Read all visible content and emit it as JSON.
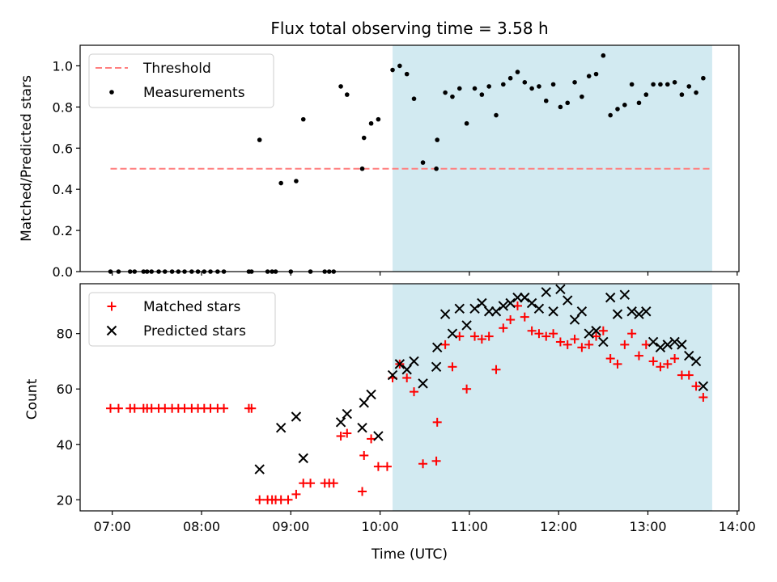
{
  "title": "Flux total observing time = 3.58 h",
  "x_axis": {
    "label": "Time (UTC)",
    "ticks": [
      {
        "value": 7.0,
        "label": "07:00"
      },
      {
        "value": 8.0,
        "label": "08:00"
      },
      {
        "value": 9.0,
        "label": "09:00"
      },
      {
        "value": 10.0,
        "label": "10:00"
      },
      {
        "value": 11.0,
        "label": "11:00"
      },
      {
        "value": 12.0,
        "label": "12:00"
      },
      {
        "value": 13.0,
        "label": "13:00"
      },
      {
        "value": 14.0,
        "label": "14:00"
      }
    ],
    "range_hours": [
      6.64,
      14.02
    ]
  },
  "colors": {
    "shade": "#add8e6",
    "threshold": "#ff7f7f",
    "measurements": "#000000",
    "matched": "#ff0000",
    "predicted": "#000000"
  },
  "chart_data": [
    {
      "type": "scatter",
      "title": "Flux total observing time = 3.58 h",
      "xlabel": "",
      "ylabel": "Matched/Predicted stars",
      "ylim": [
        0,
        1.1
      ],
      "yticks": [
        "0.0",
        "0.2",
        "0.4",
        "0.6",
        "0.8",
        "1.0"
      ],
      "legend": {
        "placement": "upper-left",
        "entries": [
          "Threshold",
          "Measurements"
        ]
      },
      "shaded_region_hours": [
        10.14,
        13.72
      ],
      "threshold": {
        "name": "Threshold",
        "value": 0.5,
        "x_range_hours": [
          6.98,
          13.72
        ]
      },
      "series": [
        {
          "name": "Measurements",
          "points": [
            [
              6.98,
              0
            ],
            [
              7.07,
              0
            ],
            [
              7.2,
              0
            ],
            [
              7.25,
              0
            ],
            [
              7.35,
              0
            ],
            [
              7.39,
              0
            ],
            [
              7.44,
              0
            ],
            [
              7.52,
              0
            ],
            [
              7.59,
              0
            ],
            [
              7.67,
              0
            ],
            [
              7.74,
              0
            ],
            [
              7.81,
              0
            ],
            [
              7.89,
              0
            ],
            [
              7.96,
              0
            ],
            [
              8.03,
              0
            ],
            [
              8.1,
              0
            ],
            [
              8.18,
              0
            ],
            [
              8.25,
              0
            ],
            [
              8.53,
              0
            ],
            [
              8.56,
              0
            ],
            [
              8.65,
              0.64
            ],
            [
              8.74,
              0
            ],
            [
              8.79,
              0
            ],
            [
              8.83,
              0
            ],
            [
              8.89,
              0.43
            ],
            [
              9.0,
              0
            ],
            [
              9.06,
              0.44
            ],
            [
              9.14,
              0.74
            ],
            [
              9.22,
              0
            ],
            [
              9.38,
              0
            ],
            [
              9.43,
              0
            ],
            [
              9.48,
              0
            ],
            [
              9.56,
              0.9
            ],
            [
              9.63,
              0.86
            ],
            [
              9.8,
              0.5
            ],
            [
              9.82,
              0.65
            ],
            [
              9.9,
              0.72
            ],
            [
              9.98,
              0.74
            ],
            [
              10.14,
              0.98
            ],
            [
              10.22,
              1.0
            ],
            [
              10.3,
              0.96
            ],
            [
              10.38,
              0.84
            ],
            [
              10.48,
              0.53
            ],
            [
              10.63,
              0.5
            ],
            [
              10.64,
              0.64
            ],
            [
              10.73,
              0.87
            ],
            [
              10.81,
              0.85
            ],
            [
              10.89,
              0.89
            ],
            [
              10.97,
              0.72
            ],
            [
              11.06,
              0.89
            ],
            [
              11.14,
              0.86
            ],
            [
              11.22,
              0.9
            ],
            [
              11.3,
              0.76
            ],
            [
              11.38,
              0.91
            ],
            [
              11.46,
              0.94
            ],
            [
              11.54,
              0.97
            ],
            [
              11.62,
              0.92
            ],
            [
              11.7,
              0.89
            ],
            [
              11.78,
              0.9
            ],
            [
              11.86,
              0.83
            ],
            [
              11.94,
              0.91
            ],
            [
              12.02,
              0.8
            ],
            [
              12.1,
              0.82
            ],
            [
              12.18,
              0.92
            ],
            [
              12.26,
              0.85
            ],
            [
              12.34,
              0.95
            ],
            [
              12.42,
              0.96
            ],
            [
              12.5,
              1.05
            ],
            [
              12.58,
              0.76
            ],
            [
              12.66,
              0.79
            ],
            [
              12.74,
              0.81
            ],
            [
              12.82,
              0.91
            ],
            [
              12.9,
              0.82
            ],
            [
              12.98,
              0.86
            ],
            [
              13.06,
              0.91
            ],
            [
              13.14,
              0.91
            ],
            [
              13.22,
              0.91
            ],
            [
              13.3,
              0.92
            ],
            [
              13.38,
              0.86
            ],
            [
              13.46,
              0.9
            ],
            [
              13.54,
              0.87
            ],
            [
              13.62,
              0.94
            ]
          ]
        }
      ]
    },
    {
      "type": "scatter",
      "title": "",
      "xlabel": "Time (UTC)",
      "ylabel": "Count",
      "ylim": [
        16,
        98
      ],
      "yticks": [
        "20",
        "40",
        "60",
        "80"
      ],
      "legend": {
        "placement": "upper-left",
        "entries": [
          "Matched stars",
          "Predicted stars"
        ]
      },
      "shaded_region_hours": [
        10.14,
        13.72
      ],
      "series": [
        {
          "name": "Matched stars",
          "marker": "plus",
          "points": [
            [
              6.98,
              53
            ],
            [
              7.07,
              53
            ],
            [
              7.2,
              53
            ],
            [
              7.25,
              53
            ],
            [
              7.35,
              53
            ],
            [
              7.39,
              53
            ],
            [
              7.44,
              53
            ],
            [
              7.52,
              53
            ],
            [
              7.59,
              53
            ],
            [
              7.67,
              53
            ],
            [
              7.74,
              53
            ],
            [
              7.81,
              53
            ],
            [
              7.89,
              53
            ],
            [
              7.96,
              53
            ],
            [
              8.03,
              53
            ],
            [
              8.1,
              53
            ],
            [
              8.18,
              53
            ],
            [
              8.25,
              53
            ],
            [
              8.53,
              53
            ],
            [
              8.56,
              53
            ],
            [
              8.65,
              20
            ],
            [
              8.74,
              20
            ],
            [
              8.79,
              20
            ],
            [
              8.83,
              20
            ],
            [
              8.89,
              20
            ],
            [
              8.97,
              20
            ],
            [
              9.06,
              22
            ],
            [
              9.14,
              26
            ],
            [
              9.22,
              26
            ],
            [
              9.38,
              26
            ],
            [
              9.43,
              26
            ],
            [
              9.48,
              26
            ],
            [
              9.56,
              43
            ],
            [
              9.63,
              44
            ],
            [
              9.8,
              23
            ],
            [
              9.82,
              36
            ],
            [
              9.9,
              42
            ],
            [
              9.98,
              32
            ],
            [
              10.08,
              32
            ],
            [
              10.14,
              64
            ],
            [
              10.22,
              69
            ],
            [
              10.3,
              64
            ],
            [
              10.38,
              59
            ],
            [
              10.48,
              33
            ],
            [
              10.63,
              34
            ],
            [
              10.64,
              48
            ],
            [
              10.73,
              76
            ],
            [
              10.81,
              68
            ],
            [
              10.89,
              79
            ],
            [
              10.97,
              60
            ],
            [
              11.06,
              79
            ],
            [
              11.14,
              78
            ],
            [
              11.22,
              79
            ],
            [
              11.3,
              67
            ],
            [
              11.38,
              82
            ],
            [
              11.46,
              85
            ],
            [
              11.54,
              90
            ],
            [
              11.62,
              86
            ],
            [
              11.7,
              81
            ],
            [
              11.78,
              80
            ],
            [
              11.86,
              79
            ],
            [
              11.94,
              80
            ],
            [
              12.02,
              77
            ],
            [
              12.1,
              76
            ],
            [
              12.18,
              78
            ],
            [
              12.26,
              75
            ],
            [
              12.34,
              76
            ],
            [
              12.42,
              79
            ],
            [
              12.5,
              81
            ],
            [
              12.58,
              71
            ],
            [
              12.66,
              69
            ],
            [
              12.74,
              76
            ],
            [
              12.82,
              80
            ],
            [
              12.9,
              72
            ],
            [
              12.98,
              76
            ],
            [
              13.06,
              70
            ],
            [
              13.14,
              68
            ],
            [
              13.22,
              69
            ],
            [
              13.3,
              71
            ],
            [
              13.38,
              65
            ],
            [
              13.46,
              65
            ],
            [
              13.54,
              61
            ],
            [
              13.62,
              57
            ]
          ]
        },
        {
          "name": "Predicted stars",
          "marker": "x",
          "points": [
            [
              8.65,
              31
            ],
            [
              8.89,
              46
            ],
            [
              9.06,
              50
            ],
            [
              9.14,
              35
            ],
            [
              9.56,
              48
            ],
            [
              9.63,
              51
            ],
            [
              9.8,
              46
            ],
            [
              9.82,
              55
            ],
            [
              9.9,
              58
            ],
            [
              9.98,
              43
            ],
            [
              10.14,
              65
            ],
            [
              10.22,
              69
            ],
            [
              10.3,
              67
            ],
            [
              10.38,
              70
            ],
            [
              10.48,
              62
            ],
            [
              10.63,
              68
            ],
            [
              10.64,
              75
            ],
            [
              10.73,
              87
            ],
            [
              10.81,
              80
            ],
            [
              10.89,
              89
            ],
            [
              10.97,
              83
            ],
            [
              11.06,
              89
            ],
            [
              11.14,
              91
            ],
            [
              11.22,
              88
            ],
            [
              11.3,
              88
            ],
            [
              11.38,
              90
            ],
            [
              11.46,
              91
            ],
            [
              11.54,
              93
            ],
            [
              11.62,
              93
            ],
            [
              11.7,
              91
            ],
            [
              11.78,
              89
            ],
            [
              11.86,
              95
            ],
            [
              11.94,
              88
            ],
            [
              12.02,
              96
            ],
            [
              12.1,
              92
            ],
            [
              12.18,
              85
            ],
            [
              12.26,
              88
            ],
            [
              12.34,
              80
            ],
            [
              12.42,
              81
            ],
            [
              12.5,
              77
            ],
            [
              12.58,
              93
            ],
            [
              12.66,
              87
            ],
            [
              12.74,
              94
            ],
            [
              12.82,
              88
            ],
            [
              12.9,
              87
            ],
            [
              12.98,
              88
            ],
            [
              13.06,
              77
            ],
            [
              13.14,
              75
            ],
            [
              13.22,
              76
            ],
            [
              13.3,
              77
            ],
            [
              13.38,
              76
            ],
            [
              13.46,
              72
            ],
            [
              13.54,
              70
            ],
            [
              13.62,
              61
            ]
          ]
        }
      ]
    }
  ]
}
